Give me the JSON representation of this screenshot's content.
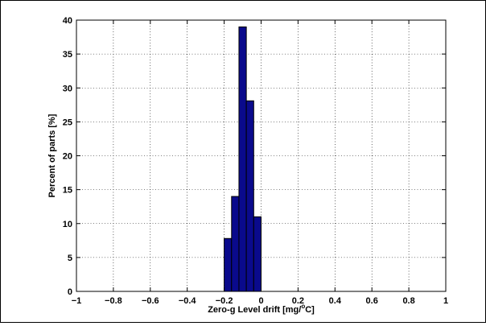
{
  "chart_data": {
    "type": "bar",
    "title": "",
    "xlabel": "Zero-g Level drift [mg/",
    "xlabel_unit_sup": "o",
    "xlabel_unit_tail": "C]",
    "ylabel": "Percent of parts [%]",
    "xlim": [
      -1,
      1
    ],
    "ylim": [
      0,
      40
    ],
    "xticks": [
      -1,
      -0.8,
      -0.6,
      -0.4,
      -0.2,
      0,
      0.2,
      0.4,
      0.6,
      0.8,
      1
    ],
    "xtick_labels": [
      "−1",
      "−0.8",
      "−0.6",
      "−0.4",
      "−0.2",
      "0",
      "0.2",
      "0.4",
      "0.6",
      "0.8",
      "1"
    ],
    "yticks": [
      0,
      5,
      10,
      15,
      20,
      25,
      30,
      35,
      40
    ],
    "ytick_labels": [
      "0",
      "5",
      "10",
      "15",
      "20",
      "25",
      "30",
      "35",
      "40"
    ],
    "grid": true,
    "bin_width": 0.04,
    "bins": [
      {
        "x_start": -0.2,
        "x_end": -0.16,
        "value": 7.8
      },
      {
        "x_start": -0.16,
        "x_end": -0.12,
        "value": 14
      },
      {
        "x_start": -0.12,
        "x_end": -0.08,
        "value": 39
      },
      {
        "x_start": -0.08,
        "x_end": -0.04,
        "value": 28.1
      },
      {
        "x_start": -0.04,
        "x_end": 0.0,
        "value": 11
      }
    ],
    "bar_color": "#0a0a8c",
    "bar_edge_color": "#000000"
  }
}
